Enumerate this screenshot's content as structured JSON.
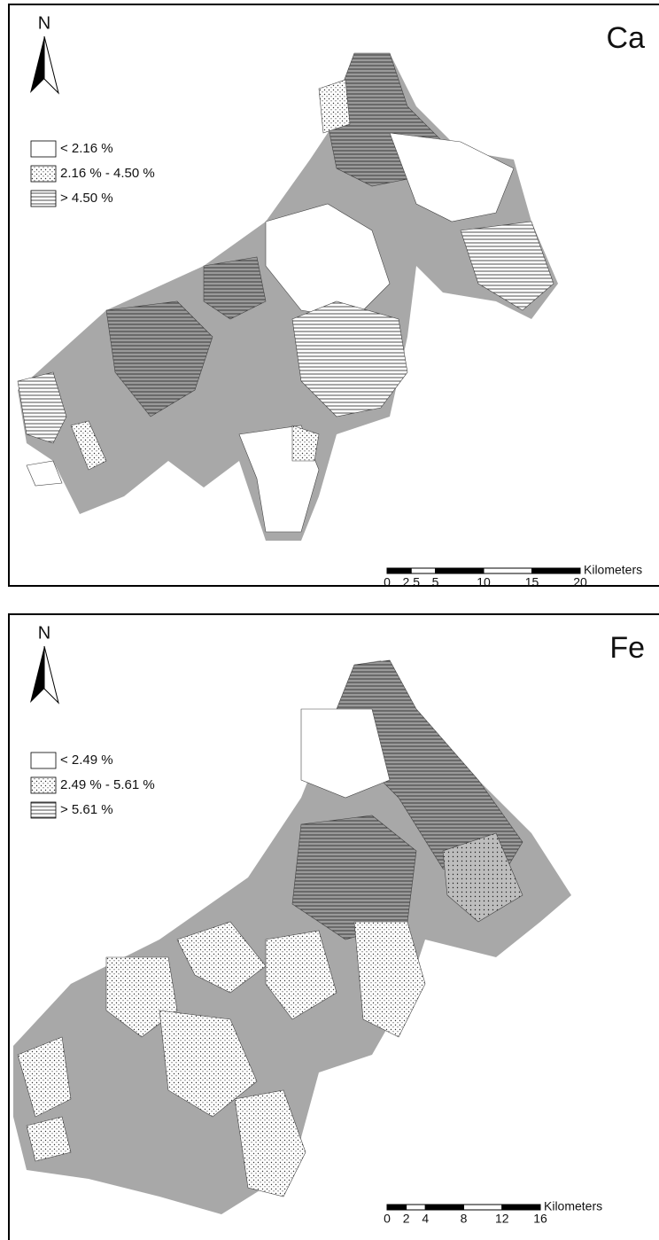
{
  "panels": [
    {
      "label": "Ca",
      "north": "N",
      "legend": [
        "< 2.16 %",
        "2.16 % - 4.50 %",
        "> 4.50 %"
      ],
      "scale": {
        "unit": "Kilometers",
        "ticks": [
          0,
          2.5,
          5,
          10,
          15,
          20
        ]
      }
    },
    {
      "label": "Fe",
      "north": "N",
      "legend": [
        "< 2.49 %",
        "2.49 % - 5.61 %",
        "> 5.61 %"
      ],
      "scale": {
        "unit": "Kilometers",
        "ticks": [
          0,
          2,
          4,
          8,
          12,
          16
        ]
      }
    }
  ]
}
